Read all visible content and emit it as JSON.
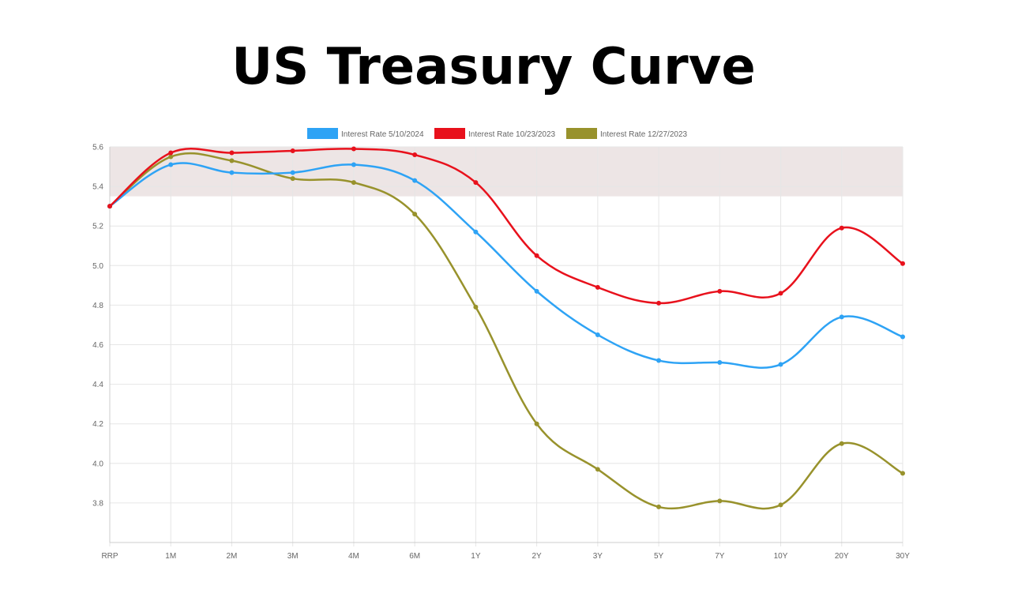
{
  "chart_data": {
    "type": "line",
    "title": "US Treasury Curve",
    "categories": [
      "RRP",
      "1M",
      "2M",
      "3M",
      "4M",
      "6M",
      "1Y",
      "2Y",
      "3Y",
      "5Y",
      "7Y",
      "10Y",
      "20Y",
      "30Y"
    ],
    "y_ticks": [
      "3.8",
      "4.0",
      "4.2",
      "4.4",
      "4.6",
      "4.8",
      "5.0",
      "5.2",
      "5.4",
      "5.6"
    ],
    "ylim": [
      3.6,
      5.6
    ],
    "band": [
      5.35,
      5.6
    ],
    "grid": true,
    "legend_position": "top",
    "series": [
      {
        "name": "Interest Rate 5/10/2024",
        "color": "#2ea3f5",
        "values": [
          5.3,
          5.51,
          5.47,
          5.47,
          5.51,
          5.43,
          5.17,
          4.87,
          4.65,
          4.52,
          4.51,
          4.5,
          4.74,
          4.64
        ]
      },
      {
        "name": "Interest Rate 10/23/2023",
        "color": "#e8111c",
        "values": [
          5.3,
          5.57,
          5.57,
          5.58,
          5.59,
          5.56,
          5.42,
          5.05,
          4.89,
          4.81,
          4.87,
          4.86,
          5.19,
          5.01
        ]
      },
      {
        "name": "Interest Rate 12/27/2023",
        "color": "#98922c",
        "values": [
          5.3,
          5.55,
          5.53,
          5.44,
          5.42,
          5.26,
          4.79,
          4.2,
          3.97,
          3.78,
          3.81,
          3.79,
          4.1,
          3.95
        ]
      }
    ]
  }
}
